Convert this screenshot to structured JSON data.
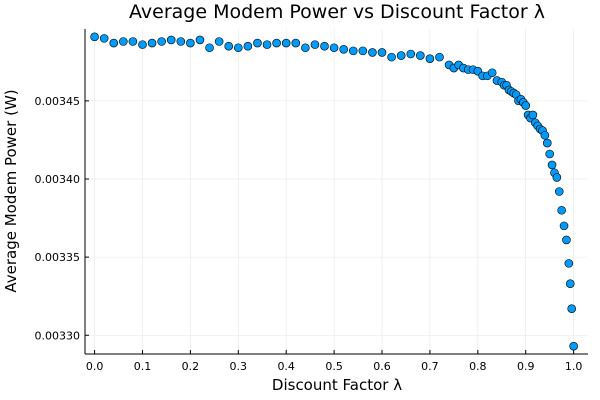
{
  "chart_data": {
    "type": "scatter",
    "title": "Average Modem Power vs Discount Factor λ",
    "xlabel": "Discount Factor λ",
    "ylabel": "Average Modem Power (W)",
    "xlim": [
      -0.02,
      1.03
    ],
    "ylim": [
      0.003288,
      0.003496
    ],
    "x_ticks": [
      0.0,
      0.1,
      0.2,
      0.3,
      0.4,
      0.5,
      0.6,
      0.7,
      0.8,
      0.9,
      1.0
    ],
    "x_tick_labels": [
      "0.0",
      "0.1",
      "0.2",
      "0.3",
      "0.4",
      "0.5",
      "0.6",
      "0.7",
      "0.8",
      "0.9",
      "1.0"
    ],
    "y_ticks": [
      0.0033,
      0.00335,
      0.0034,
      0.00345
    ],
    "y_tick_labels": [
      "0.00330",
      "0.00335",
      "0.00340",
      "0.00345"
    ],
    "grid": true,
    "legend": "none",
    "marker_color": "#009af9",
    "points": [
      [
        0.0,
        0.003491
      ],
      [
        0.02,
        0.00349
      ],
      [
        0.04,
        0.003487
      ],
      [
        0.06,
        0.003488
      ],
      [
        0.08,
        0.003488
      ],
      [
        0.1,
        0.003486
      ],
      [
        0.12,
        0.003487
      ],
      [
        0.14,
        0.003488
      ],
      [
        0.16,
        0.003489
      ],
      [
        0.18,
        0.003488
      ],
      [
        0.2,
        0.003487
      ],
      [
        0.22,
        0.003489
      ],
      [
        0.24,
        0.003484
      ],
      [
        0.26,
        0.003488
      ],
      [
        0.28,
        0.003485
      ],
      [
        0.3,
        0.003484
      ],
      [
        0.32,
        0.003485
      ],
      [
        0.34,
        0.003487
      ],
      [
        0.36,
        0.003486
      ],
      [
        0.38,
        0.003487
      ],
      [
        0.4,
        0.003487
      ],
      [
        0.42,
        0.003487
      ],
      [
        0.44,
        0.003484
      ],
      [
        0.46,
        0.003486
      ],
      [
        0.48,
        0.003485
      ],
      [
        0.5,
        0.003484
      ],
      [
        0.52,
        0.003483
      ],
      [
        0.54,
        0.003482
      ],
      [
        0.56,
        0.003482
      ],
      [
        0.58,
        0.003481
      ],
      [
        0.6,
        0.003481
      ],
      [
        0.62,
        0.003478
      ],
      [
        0.64,
        0.003479
      ],
      [
        0.66,
        0.00348
      ],
      [
        0.68,
        0.003479
      ],
      [
        0.7,
        0.003477
      ],
      [
        0.72,
        0.003478
      ],
      [
        0.74,
        0.003473
      ],
      [
        0.75,
        0.003471
      ],
      [
        0.76,
        0.003473
      ],
      [
        0.77,
        0.003471
      ],
      [
        0.78,
        0.00347
      ],
      [
        0.79,
        0.00347
      ],
      [
        0.8,
        0.003469
      ],
      [
        0.81,
        0.003466
      ],
      [
        0.82,
        0.003466
      ],
      [
        0.83,
        0.003468
      ],
      [
        0.84,
        0.003463
      ],
      [
        0.85,
        0.003462
      ],
      [
        0.855,
        0.00346
      ],
      [
        0.86,
        0.00346
      ],
      [
        0.865,
        0.003457
      ],
      [
        0.87,
        0.003456
      ],
      [
        0.875,
        0.003455
      ],
      [
        0.88,
        0.003454
      ],
      [
        0.885,
        0.00345
      ],
      [
        0.89,
        0.003451
      ],
      [
        0.895,
        0.003449
      ],
      [
        0.9,
        0.003447
      ],
      [
        0.905,
        0.003441
      ],
      [
        0.91,
        0.003439
      ],
      [
        0.915,
        0.003441
      ],
      [
        0.92,
        0.003436
      ],
      [
        0.925,
        0.003434
      ],
      [
        0.93,
        0.003432
      ],
      [
        0.935,
        0.003431
      ],
      [
        0.94,
        0.003428
      ],
      [
        0.945,
        0.003423
      ],
      [
        0.95,
        0.003416
      ],
      [
        0.955,
        0.003409
      ],
      [
        0.96,
        0.003404
      ],
      [
        0.965,
        0.003401
      ],
      [
        0.97,
        0.003392
      ],
      [
        0.975,
        0.00338
      ],
      [
        0.98,
        0.00337
      ],
      [
        0.985,
        0.003361
      ],
      [
        0.99,
        0.003346
      ],
      [
        0.993,
        0.003333
      ],
      [
        0.996,
        0.003317
      ],
      [
        1.0,
        0.003293
      ]
    ]
  }
}
